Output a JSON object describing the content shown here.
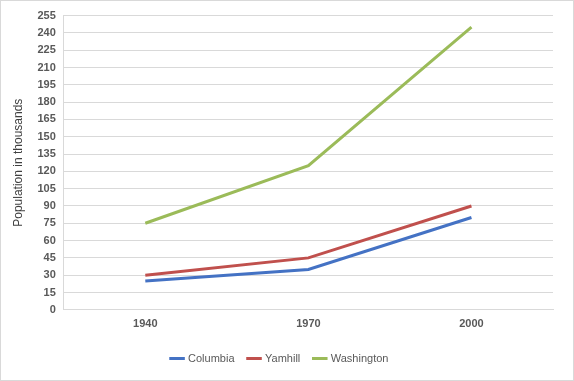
{
  "chart_data": {
    "type": "line",
    "ylabel": "Population in thousands",
    "categories": [
      "1940",
      "1970",
      "2000"
    ],
    "series": [
      {
        "name": "Columbia",
        "color": "#4472c4",
        "values": [
          25,
          35,
          80
        ]
      },
      {
        "name": "Yamhill",
        "color": "#c0504d",
        "values": [
          30,
          45,
          90
        ]
      },
      {
        "name": "Washington",
        "color": "#9bbb59",
        "values": [
          75,
          125,
          245
        ]
      }
    ],
    "ylim": [
      0,
      255
    ],
    "yticks": [
      0,
      15,
      30,
      45,
      60,
      75,
      90,
      105,
      120,
      135,
      150,
      165,
      180,
      195,
      210,
      225,
      240,
      255
    ],
    "grid": true,
    "legend": "bottom",
    "marker": "none"
  }
}
